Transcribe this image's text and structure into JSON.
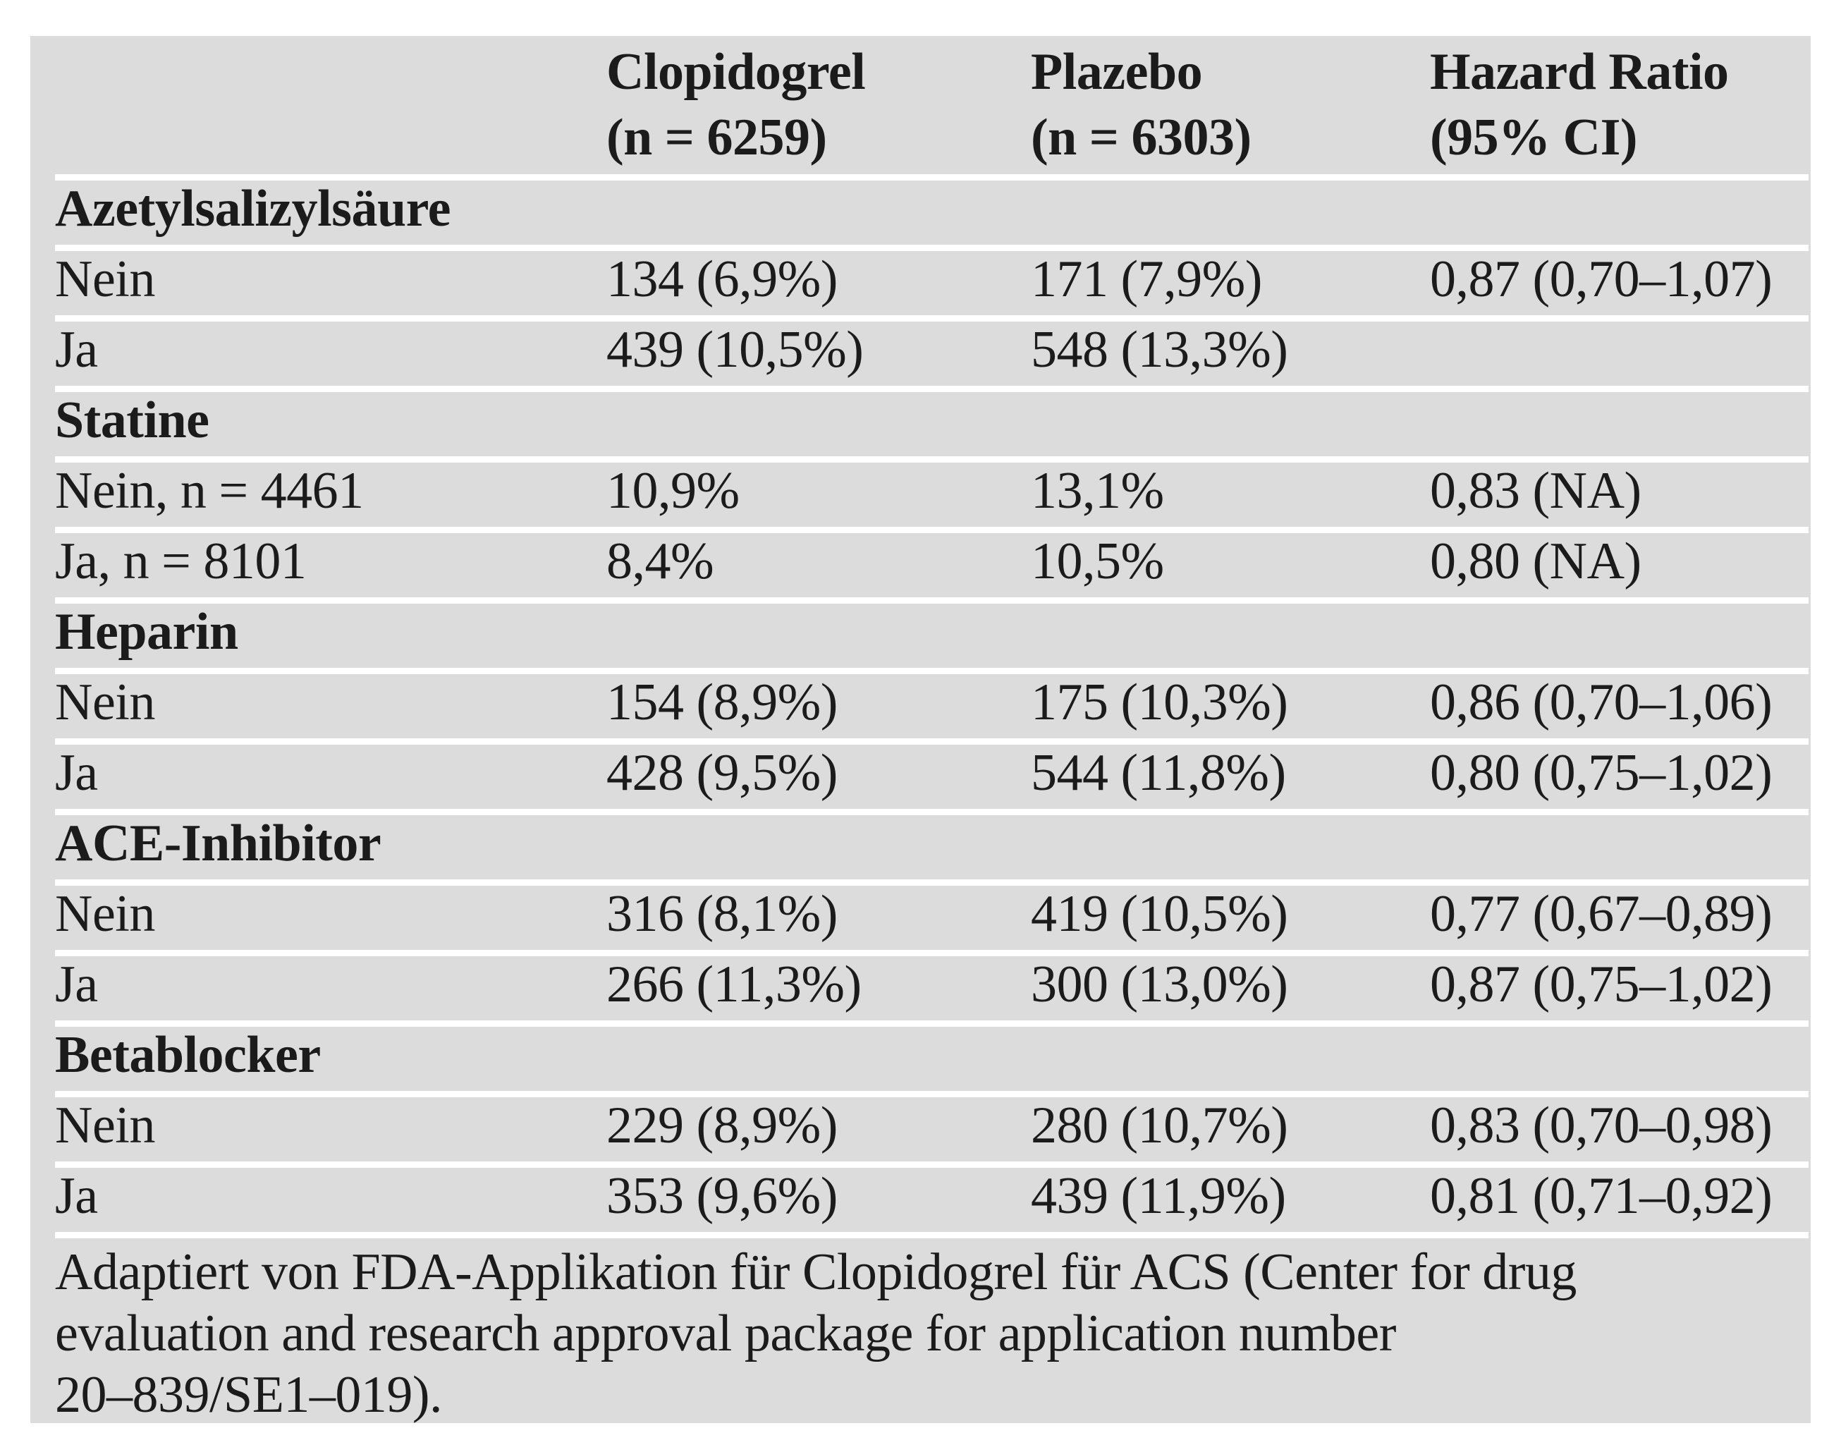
{
  "header": {
    "clopidogrel": "Clopidogrel\n(n = 6259)",
    "plazebo": "Plazebo\n(n = 6303)",
    "hazard_ratio": "Hazard Ratio\n(95% CI)"
  },
  "sections": [
    {
      "title": "Azetylsalizylsäure",
      "rows": [
        {
          "label": "Nein",
          "clopidogrel": "134 (6,9%)",
          "plazebo": "171 (7,9%)",
          "hazard_ratio": "0,87 (0,70–1,07)"
        },
        {
          "label": "Ja",
          "clopidogrel": "439 (10,5%)",
          "plazebo": "548 (13,3%)",
          "hazard_ratio": ""
        }
      ]
    },
    {
      "title": "Statine",
      "rows": [
        {
          "label": "Nein, n = 4461",
          "clopidogrel": "10,9%",
          "plazebo": "13,1%",
          "hazard_ratio": "0,83 (NA)"
        },
        {
          "label": "Ja, n = 8101",
          "clopidogrel": "8,4%",
          "plazebo": "10,5%",
          "hazard_ratio": "0,80 (NA)"
        }
      ]
    },
    {
      "title": "Heparin",
      "rows": [
        {
          "label": "Nein",
          "clopidogrel": "154 (8,9%)",
          "plazebo": "175 (10,3%)",
          "hazard_ratio": "0,86 (0,70–1,06)"
        },
        {
          "label": "Ja",
          "clopidogrel": "428 (9,5%)",
          "plazebo": "544 (11,8%)",
          "hazard_ratio": "0,80 (0,75–1,02)"
        }
      ]
    },
    {
      "title": "ACE-Inhibitor",
      "rows": [
        {
          "label": "Nein",
          "clopidogrel": "316 (8,1%)",
          "plazebo": "419 (10,5%)",
          "hazard_ratio": "0,77 (0,67–0,89)"
        },
        {
          "label": "Ja",
          "clopidogrel": "266 (11,3%)",
          "plazebo": "300 (13,0%)",
          "hazard_ratio": "0,87 (0,75–1,02)"
        }
      ]
    },
    {
      "title": "Betablocker",
      "rows": [
        {
          "label": "Nein",
          "clopidogrel": "229 (8,9%)",
          "plazebo": "280 (10,7%)",
          "hazard_ratio": "0,83 (0,70–0,98)"
        },
        {
          "label": "Ja",
          "clopidogrel": "353 (9,6%)",
          "plazebo": "439 (11,9%)",
          "hazard_ratio": "0,81 (0,71–0,92)"
        }
      ]
    }
  ],
  "footnote": "Adaptiert von FDA-Applikation für Clopidogrel für ACS (Center for drug\nevaluation and research approval package for application number\n20–839/SE1–019).",
  "colors": {
    "table_background": "#dcdcdc",
    "separator": "#ffffff",
    "text": "#1b1b1b",
    "page_background": "#ffffff"
  }
}
